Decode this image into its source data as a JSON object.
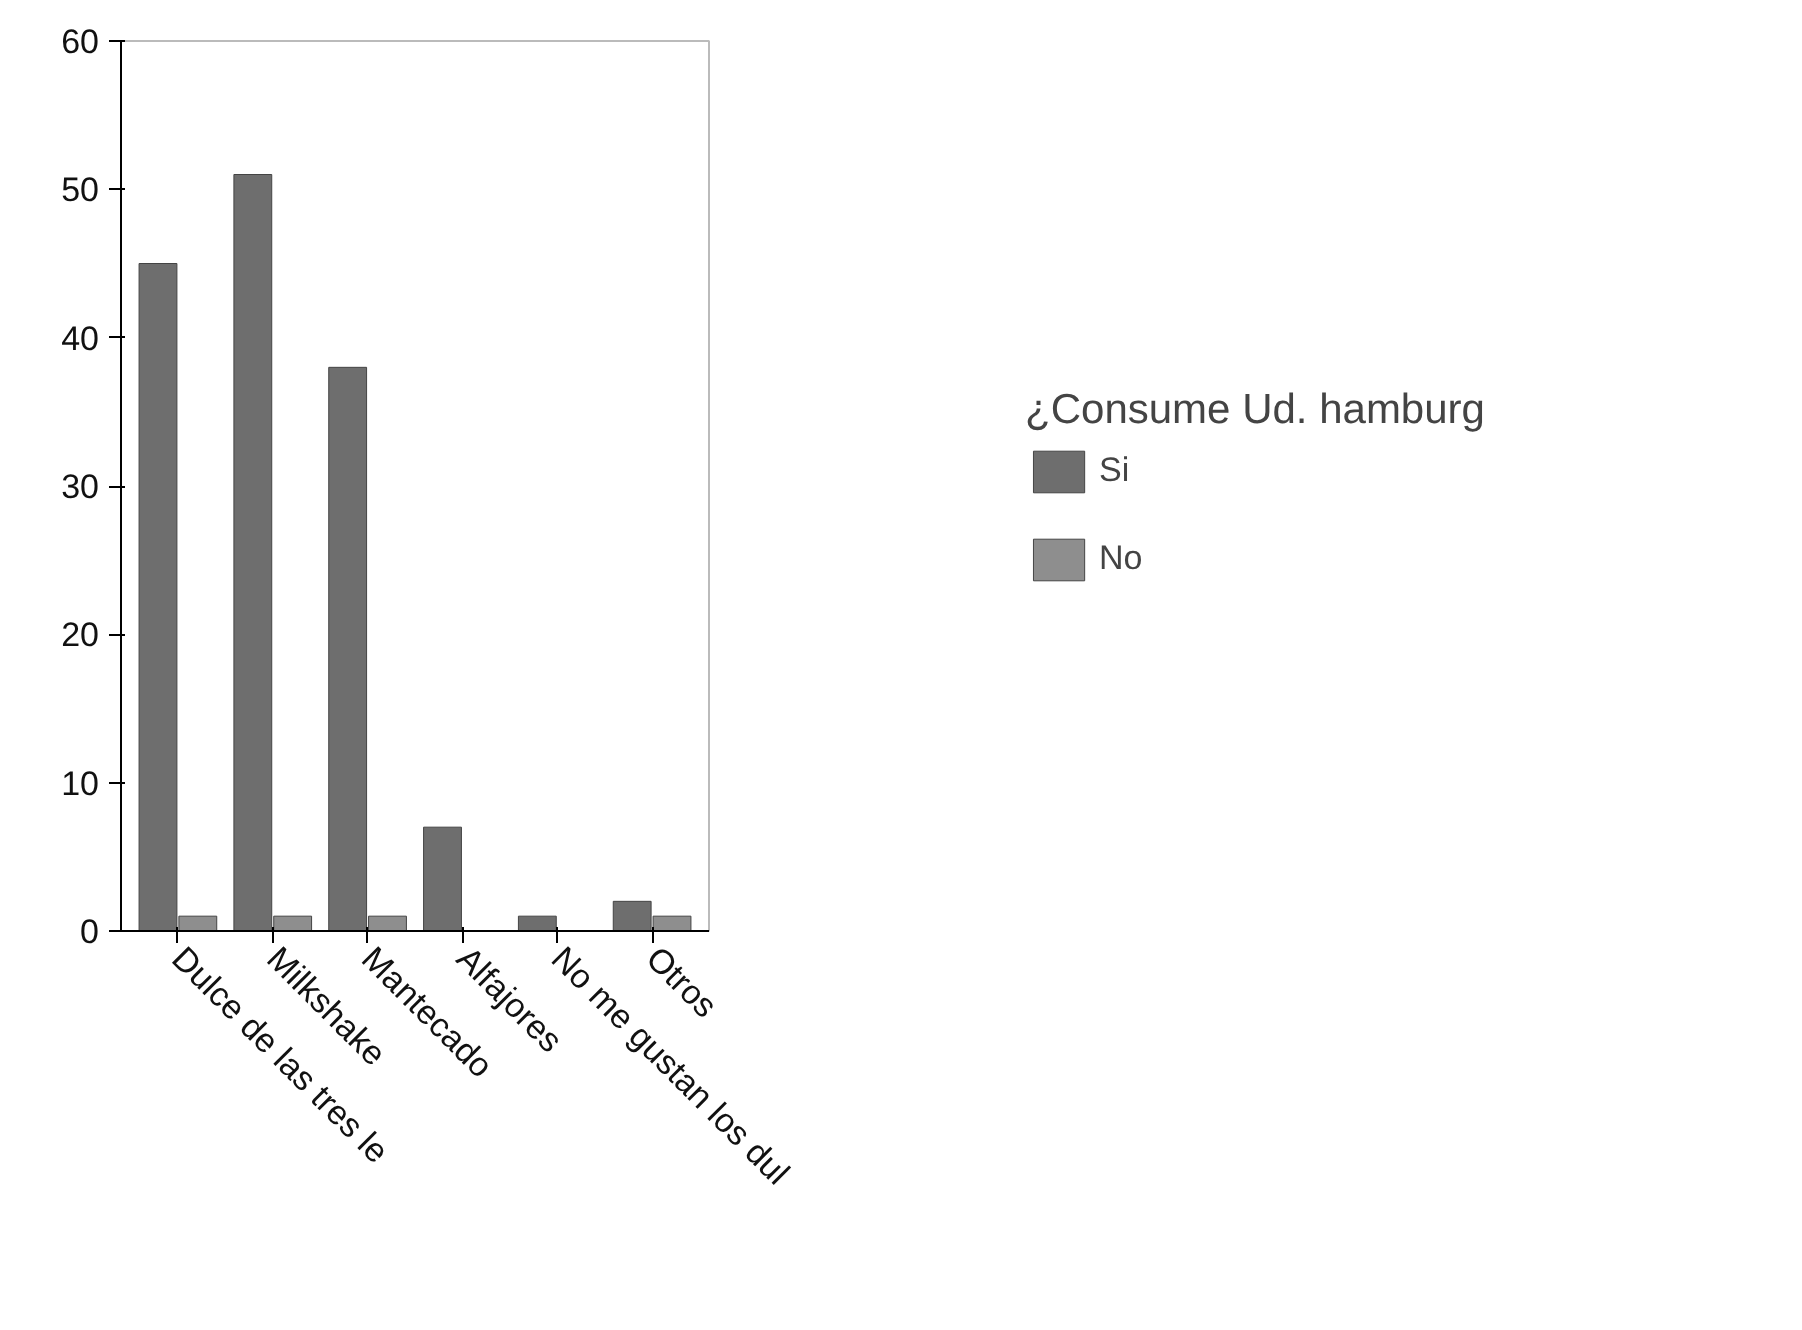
{
  "chart_data": {
    "type": "bar",
    "categories": [
      "Dulce de las tres le",
      "Milkshake",
      "Mantecado",
      "Alfajores",
      "No me gustan los dul",
      "Otros"
    ],
    "series": [
      {
        "name": "Si",
        "color": "#6e6e6e",
        "values": [
          45,
          51,
          38,
          7,
          1,
          2
        ]
      },
      {
        "name": "No",
        "color": "#8e8e8e",
        "values": [
          1,
          1,
          1,
          null,
          null,
          1
        ]
      }
    ],
    "ylim": [
      0,
      60
    ],
    "yticks": [
      0,
      10,
      20,
      30,
      40,
      50,
      60
    ],
    "legend_title": "¿Consume Ud. hamburg",
    "legend": "right",
    "grid": false
  }
}
